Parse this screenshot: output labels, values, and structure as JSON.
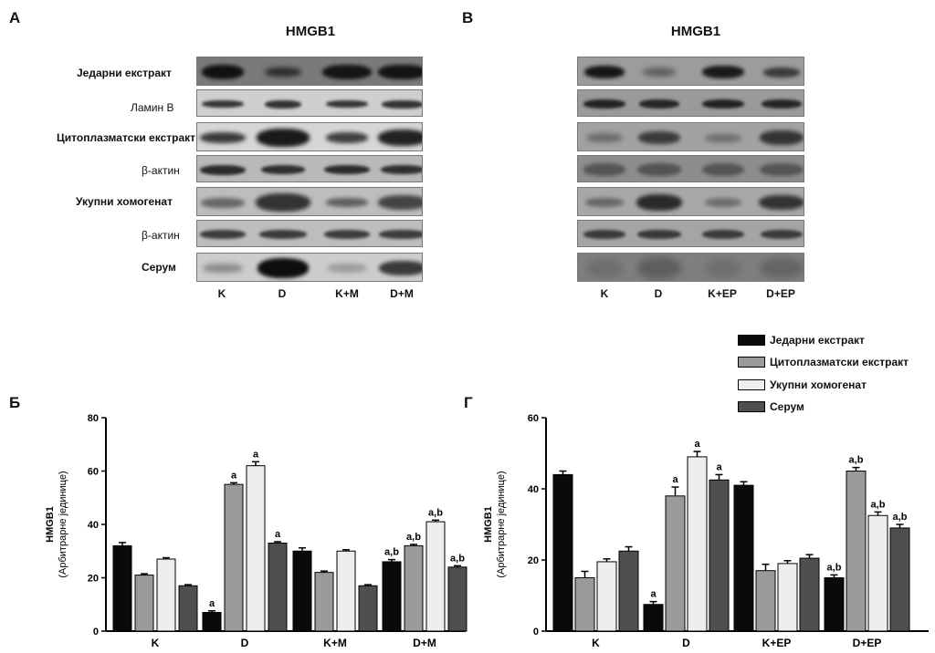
{
  "panels": {
    "a": "A",
    "b": "B",
    "c": "Б",
    "d": "Г"
  },
  "blot_a": {
    "title": "HMGB1",
    "rows": [
      "Једарни екстракт",
      "Ламин B",
      "Цитоплазматски екстракт",
      "β-актин",
      "Укупни хомогенат",
      "β-актин",
      "Серум"
    ],
    "lanes": [
      "K",
      "D",
      "K+M",
      "D+M"
    ]
  },
  "blot_b": {
    "title": "HMGB1",
    "lanes": [
      "K",
      "D",
      "K+EP",
      "D+EP"
    ]
  },
  "legend": [
    "Једарни екстракт",
    "Цитоплазматски екстракт",
    "Укупни хомогенат",
    "Серум"
  ],
  "colors": {
    "nuclear": "#0a0a0a",
    "cytoplasm": "#9a9a9a",
    "homogenate": "#eeeeee",
    "serum": "#4f4f4f"
  },
  "chart_data": [
    {
      "type": "bar",
      "panel": "Б",
      "categories": [
        "K",
        "D",
        "K+M",
        "D+M"
      ],
      "ylabel": "HMGB1",
      "ylabel2": "(Арбитрарне јединице)",
      "ylim": [
        0,
        80
      ],
      "yticks": [
        "0",
        "20",
        "40",
        "60",
        "80"
      ],
      "series": [
        {
          "name": "Једарни екстракт",
          "values": [
            32,
            7,
            30,
            26
          ],
          "errors": [
            1.2,
            0.6,
            1.2,
            0.8
          ],
          "labels": [
            "",
            "a",
            "",
            "a,b"
          ]
        },
        {
          "name": "Цитоплазматски екстракт",
          "values": [
            21,
            55,
            22,
            32
          ],
          "errors": [
            0.5,
            0.6,
            0.5,
            0.5
          ],
          "labels": [
            "",
            "a",
            "",
            "a,b"
          ]
        },
        {
          "name": "Укупни хомогенат",
          "values": [
            27,
            62,
            30,
            41
          ],
          "errors": [
            0.5,
            1.5,
            0.5,
            0.6
          ],
          "labels": [
            "",
            "a",
            "",
            "a,b"
          ]
        },
        {
          "name": "Серум",
          "values": [
            17,
            33,
            17,
            24
          ],
          "errors": [
            0.4,
            0.5,
            0.4,
            0.5
          ],
          "labels": [
            "",
            "a",
            "",
            "a,b"
          ]
        }
      ]
    },
    {
      "type": "bar",
      "panel": "Г",
      "categories": [
        "K",
        "D",
        "K+EP",
        "D+EP"
      ],
      "ylabel": "HMGB1",
      "ylabel2": "(Арбитрарне јединице)",
      "ylim": [
        0,
        60
      ],
      "yticks": [
        "0",
        "20",
        "40",
        "60"
      ],
      "series": [
        {
          "name": "Једарни екстракт",
          "values": [
            44,
            7.5,
            41,
            15
          ],
          "errors": [
            1.0,
            0.8,
            1.0,
            0.8
          ],
          "labels": [
            "",
            "a",
            "",
            "a,b"
          ]
        },
        {
          "name": "Цитоплазматски екстракт",
          "values": [
            15,
            38,
            17,
            45
          ],
          "errors": [
            1.8,
            2.5,
            1.8,
            1.0
          ],
          "labels": [
            "",
            "a",
            "",
            "a,b"
          ]
        },
        {
          "name": "Укупни хомогенат",
          "values": [
            19.5,
            49,
            19,
            32.5
          ],
          "errors": [
            0.8,
            1.5,
            0.8,
            1.0
          ],
          "labels": [
            "",
            "a",
            "",
            "a,b"
          ]
        },
        {
          "name": "Серум",
          "values": [
            22.5,
            42.5,
            20.5,
            29
          ],
          "errors": [
            1.2,
            1.5,
            1.0,
            1.0
          ],
          "labels": [
            "",
            "a",
            "",
            "a,b"
          ]
        }
      ]
    }
  ]
}
